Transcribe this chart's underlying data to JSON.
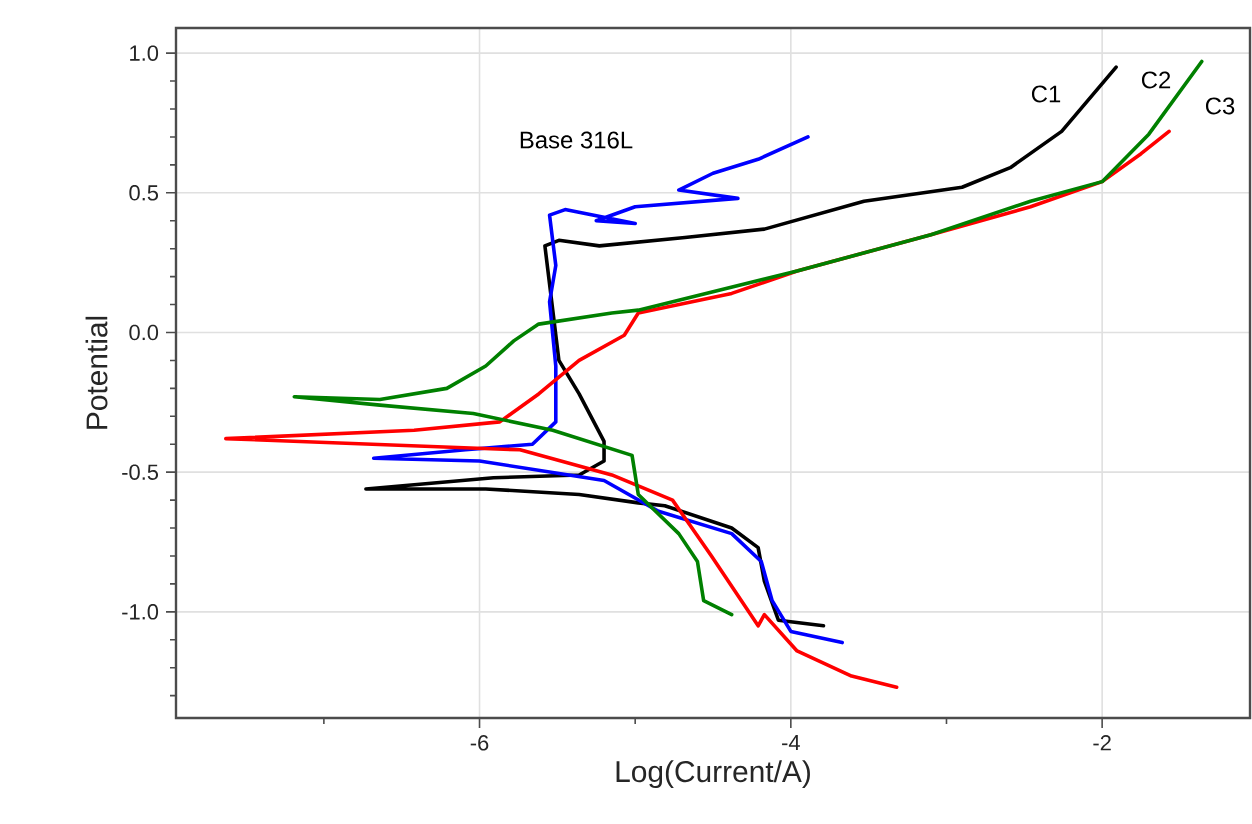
{
  "chart_data": {
    "type": "line",
    "xlabel": "Log(Current/A)",
    "ylabel": "Potential",
    "xlim": [
      -7.95,
      -1.05
    ],
    "ylim": [
      -1.38,
      1.09
    ],
    "xticks": [
      {
        "value": -7,
        "label": null
      },
      -6,
      {
        "value": -5,
        "label": null
      },
      -4,
      {
        "value": -3,
        "label": null
      },
      -2
    ],
    "yticks": [
      {
        "value": -1.3,
        "label": null
      },
      {
        "value": -1.2,
        "label": null
      },
      {
        "value": -1.1,
        "label": null
      },
      {
        "value": -1,
        "label": "-1.0"
      },
      {
        "value": -0.9,
        "label": null
      },
      {
        "value": -0.8,
        "label": null
      },
      {
        "value": -0.7,
        "label": null
      },
      {
        "value": -0.6,
        "label": null
      },
      {
        "value": -0.5,
        "label": "-0.5"
      },
      {
        "value": -0.4,
        "label": null
      },
      {
        "value": -0.3,
        "label": null
      },
      {
        "value": -0.2,
        "label": null
      },
      {
        "value": -0.1,
        "label": null
      },
      {
        "value": 0,
        "label": "0.0"
      },
      {
        "value": 0.1,
        "label": null
      },
      {
        "value": 0.2,
        "label": null
      },
      {
        "value": 0.3,
        "label": null
      },
      {
        "value": 0.4,
        "label": null
      },
      {
        "value": 0.5,
        "label": "0.5"
      },
      {
        "value": 0.6,
        "label": null
      },
      {
        "value": 0.7,
        "label": null
      },
      {
        "value": 0.8,
        "label": null
      },
      {
        "value": 0.9,
        "label": null
      },
      {
        "value": 1,
        "label": "1.0"
      }
    ],
    "grid": true,
    "marker": "none",
    "line_style": "solid",
    "series": [
      {
        "color": "#000000",
        "x": [
          -3.79,
          -4.08,
          -4.17,
          -4.21,
          -4.38,
          -4.81,
          -4.98,
          -5.36,
          -5.96,
          -6.73,
          -5.91,
          -5.36,
          -5.2,
          -5.2,
          -5.36,
          -5.49,
          -5.58,
          -5.49,
          -5.23,
          -4.68,
          -4.17,
          -3.53,
          -2.9,
          -2.59,
          -2.26,
          -1.91
        ],
        "values": [
          -1.05,
          -1.03,
          -0.89,
          -0.77,
          -0.7,
          -0.62,
          -0.61,
          -0.58,
          -0.56,
          -0.56,
          -0.52,
          -0.51,
          -0.46,
          -0.39,
          -0.22,
          -0.1,
          0.31,
          0.33,
          0.31,
          0.34,
          0.37,
          0.47,
          0.52,
          0.59,
          0.72,
          0.95
        ]
      },
      {
        "color": "#0000ff",
        "x": [
          -3.67,
          -4.0,
          -4.12,
          -4.19,
          -4.38,
          -4.85,
          -5.2,
          -6.0,
          -6.68,
          -6.09,
          -5.66,
          -5.51,
          -5.51,
          -5.55,
          -5.51,
          -5.55,
          -5.45,
          -5.0,
          -5.25,
          -5.0,
          -4.34,
          -4.72,
          -4.5,
          -4.21,
          -3.89
        ],
        "values": [
          -1.11,
          -1.07,
          -0.96,
          -0.82,
          -0.72,
          -0.64,
          -0.53,
          -0.46,
          -0.45,
          -0.42,
          -0.4,
          -0.32,
          -0.12,
          0.11,
          0.24,
          0.42,
          0.44,
          0.39,
          0.4,
          0.45,
          0.48,
          0.51,
          0.57,
          0.62,
          0.7
        ]
      },
      {
        "color": "#ff0000",
        "x": [
          -3.32,
          -3.61,
          -3.96,
          -4.17,
          -4.21,
          -4.51,
          -4.76,
          -5.15,
          -5.74,
          -7.63,
          -6.42,
          -5.87,
          -5.62,
          -5.36,
          -5.07,
          -4.98,
          -4.38,
          -3.96,
          -3.1,
          -2.46,
          -2.0,
          -1.75,
          -1.57
        ],
        "values": [
          -1.27,
          -1.23,
          -1.14,
          -1.01,
          -1.05,
          -0.8,
          -0.6,
          -0.51,
          -0.42,
          -0.38,
          -0.35,
          -0.32,
          -0.22,
          -0.1,
          -0.01,
          0.07,
          0.14,
          0.22,
          0.35,
          0.45,
          0.54,
          0.64,
          0.72
        ]
      },
      {
        "color": "#008000",
        "x": [
          -4.38,
          -4.56,
          -4.6,
          -4.72,
          -4.98,
          -5.02,
          -5.53,
          -6.04,
          -6.64,
          -7.19,
          -6.64,
          -6.21,
          -5.96,
          -5.78,
          -5.62,
          -5.15,
          -4.98,
          -3.96,
          -3.1,
          -2.46,
          -2.0,
          -1.7,
          -1.36
        ],
        "values": [
          -1.01,
          -0.96,
          -0.82,
          -0.72,
          -0.58,
          -0.44,
          -0.35,
          -0.29,
          -0.26,
          -0.23,
          -0.24,
          -0.2,
          -0.12,
          -0.03,
          0.03,
          0.07,
          0.08,
          0.22,
          0.35,
          0.47,
          0.54,
          0.71,
          0.97
        ]
      }
    ],
    "annotations": [
      "Base 316L",
      "C1",
      "C2",
      "C3"
    ]
  }
}
